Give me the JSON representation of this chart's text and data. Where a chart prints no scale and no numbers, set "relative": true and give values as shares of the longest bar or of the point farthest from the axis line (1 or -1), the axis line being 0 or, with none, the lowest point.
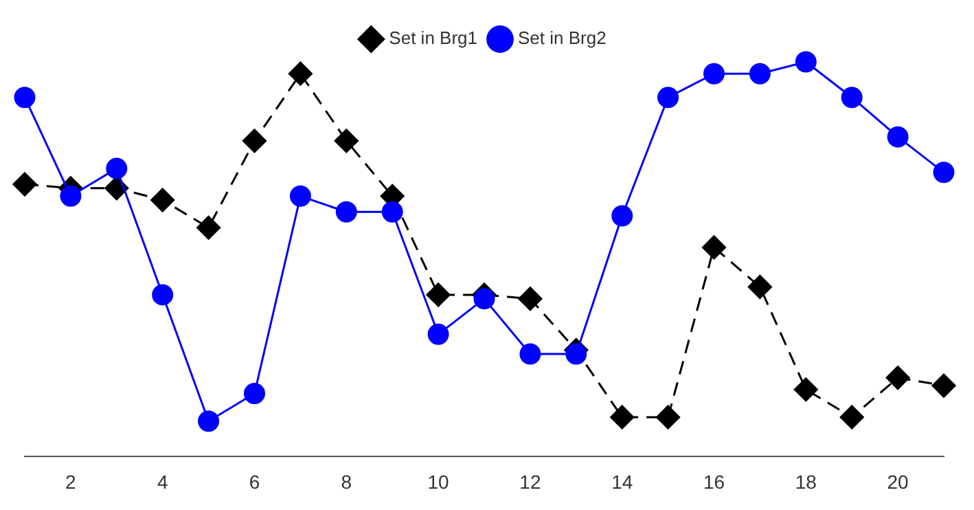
{
  "chart_data": {
    "type": "line",
    "relative": true,
    "x": [
      1,
      2,
      3,
      4,
      5,
      6,
      7,
      8,
      9,
      10,
      11,
      12,
      13,
      14,
      15,
      16,
      17,
      18,
      19,
      20,
      21
    ],
    "xlim": [
      1,
      21
    ],
    "xticks": [
      2,
      4,
      6,
      8,
      10,
      12,
      14,
      16,
      18,
      20
    ],
    "legend": "top",
    "grid": false,
    "series": [
      {
        "name": "Set in Brg1",
        "color": "#000000",
        "marker": "diamond",
        "line_style": "dashed",
        "values": [
          0.69,
          0.68,
          0.68,
          0.65,
          0.58,
          0.8,
          0.97,
          0.8,
          0.66,
          0.41,
          0.41,
          0.4,
          0.27,
          0.1,
          0.1,
          0.53,
          0.43,
          0.17,
          0.1,
          0.2,
          0.18
        ]
      },
      {
        "name": "Set in Brg2",
        "color": "#0000ff",
        "marker": "circle",
        "line_style": "solid",
        "values": [
          0.91,
          0.66,
          0.73,
          0.41,
          0.09,
          0.16,
          0.66,
          0.62,
          0.62,
          0.31,
          0.4,
          0.26,
          0.26,
          0.61,
          0.91,
          0.97,
          0.97,
          1,
          0.91,
          0.81,
          0.72
        ]
      }
    ]
  }
}
